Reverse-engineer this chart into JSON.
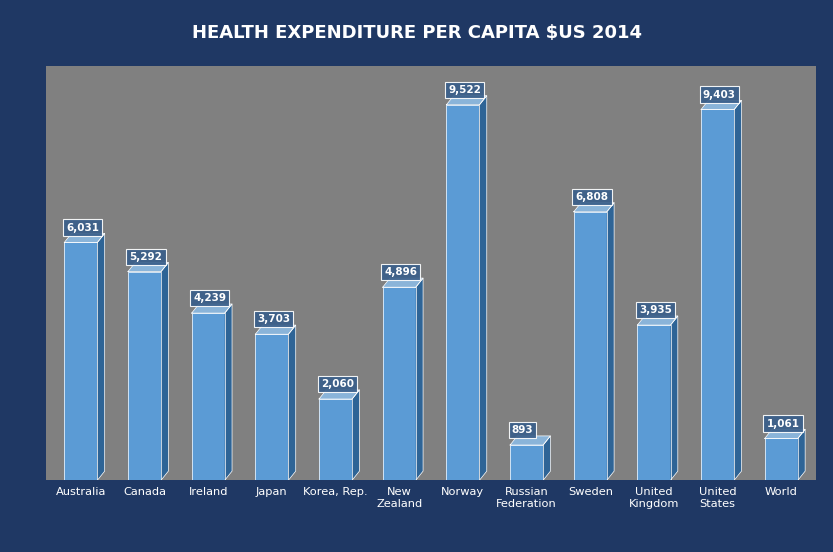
{
  "title": "HEALTH EXPENDITURE PER CAPITA $US 2014",
  "categories": [
    "Australia",
    "Canada",
    "Ireland",
    "Japan",
    "Korea, Rep.",
    "New\nZealand",
    "Norway",
    "Russian\nFederation",
    "Sweden",
    "United\nKingdom",
    "United\nStates",
    "World"
  ],
  "values": [
    6031,
    5292,
    4239,
    3703,
    2060,
    4896,
    9522,
    893,
    6808,
    3935,
    9403,
    1061
  ],
  "bar_color_face": "#5b9bd5",
  "bar_color_side": "#2e6496",
  "bar_color_top": "#8ab4d9",
  "label_bg": "#3a5f8a",
  "label_text": "#ffffff",
  "background_outer": "#1f3864",
  "background_inner": "#808080",
  "title_color": "#ffffff",
  "title_fontsize": 13,
  "ylim": [
    0,
    10500
  ],
  "bar_width": 0.52
}
